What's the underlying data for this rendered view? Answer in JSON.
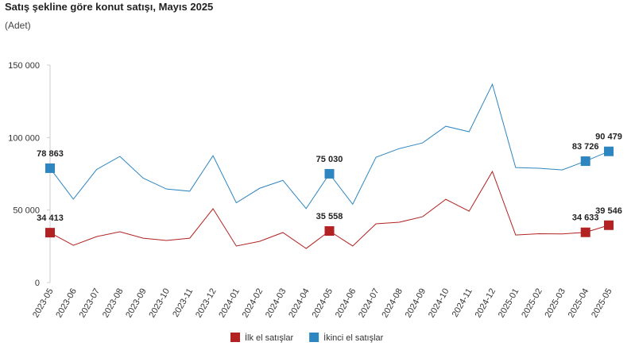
{
  "chart_data": {
    "type": "line",
    "title": "Satış şekline göre konut satışı, Mayıs 2025",
    "subtitle": "(Adet)",
    "categories": [
      "2023-05",
      "2023-06",
      "2023-07",
      "2023-08",
      "2023-09",
      "2023-10",
      "2023-11",
      "2023-12",
      "2024-01",
      "2024-02",
      "2024-03",
      "2024-04",
      "2024-05",
      "2024-06",
      "2024-07",
      "2024-08",
      "2024-09",
      "2024-10",
      "2024-11",
      "2024-12",
      "2025-01",
      "2025-02",
      "2025-03",
      "2025-04",
      "2025-05"
    ],
    "series": [
      {
        "name": "İlk el satışlar",
        "color": "#b22222",
        "values": [
          34413,
          25700,
          31700,
          35000,
          30600,
          29000,
          30600,
          50900,
          25200,
          28400,
          34500,
          23500,
          35558,
          25200,
          40500,
          41600,
          45400,
          57400,
          49200,
          76600,
          32800,
          33700,
          33500,
          34633,
          39546
        ],
        "value_labels": [
          "34 413",
          null,
          null,
          null,
          null,
          null,
          null,
          null,
          null,
          null,
          null,
          null,
          "35 558",
          null,
          null,
          null,
          null,
          null,
          null,
          null,
          null,
          null,
          null,
          "34 633",
          "39 546"
        ]
      },
      {
        "name": "İkinci el satışlar",
        "color": "#2e86c1",
        "values": [
          78863,
          57500,
          78000,
          87000,
          72000,
          64500,
          63000,
          87500,
          55000,
          65000,
          70500,
          51000,
          75030,
          54000,
          86400,
          92400,
          96300,
          107800,
          104000,
          136800,
          79300,
          78800,
          77700,
          83726,
          90479
        ],
        "value_labels": [
          "78 863",
          null,
          null,
          null,
          null,
          null,
          null,
          null,
          null,
          null,
          null,
          null,
          "75 030",
          null,
          null,
          null,
          null,
          null,
          null,
          null,
          null,
          null,
          null,
          "83 726",
          "90 479"
        ]
      }
    ],
    "ylim": [
      0,
      150000
    ],
    "yticks": [
      0,
      {
        "value": 50000,
        "label": "50 000"
      },
      {
        "value": 100000,
        "label": "100 000"
      },
      {
        "value": 150000,
        "label": "150 000"
      }
    ],
    "grid": false,
    "legend": "bottom"
  }
}
